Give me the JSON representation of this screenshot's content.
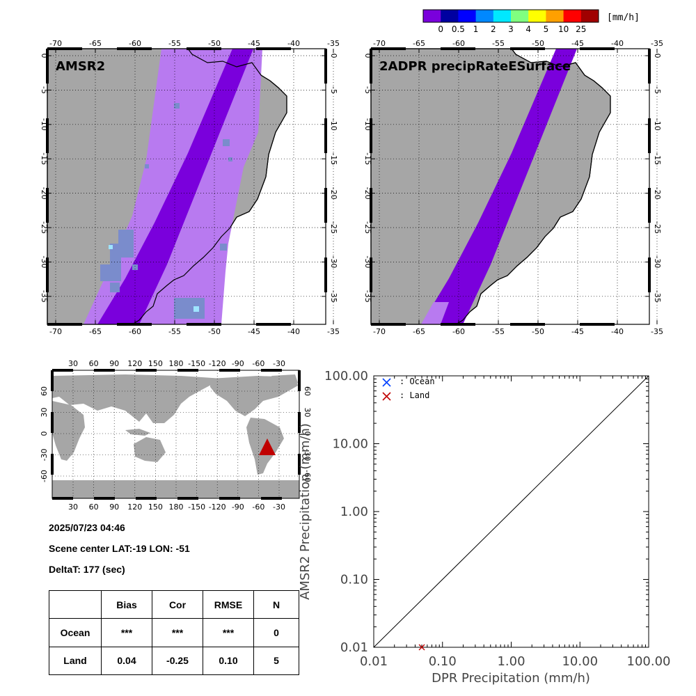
{
  "colorbar": {
    "unit": "[mm/h]",
    "labels": [
      "0",
      "0.5",
      "1",
      "2",
      "3",
      "4",
      "5",
      "10",
      "25"
    ],
    "colors": [
      "#7a00dc",
      "#0000a0",
      "#0000ff",
      "#0088ff",
      "#00e8ff",
      "#80ff80",
      "#ffff00",
      "#ffa000",
      "#ff0000",
      "#a00000"
    ]
  },
  "maps": [
    {
      "title": "AMSR2"
    },
    {
      "title": "2ADPR precipRateESurface"
    }
  ],
  "regional_axes": {
    "lon_ticks": [
      "-70",
      "-65",
      "-60",
      "-55",
      "-50",
      "-45",
      "-40",
      "-35"
    ],
    "lat_ticks": [
      "0",
      "-5",
      "-10",
      "-15",
      "-20",
      "-25",
      "-30",
      "-35"
    ]
  },
  "world_axes": {
    "lon_ticks": [
      "30",
      "60",
      "90",
      "120",
      "150",
      "180",
      "-150",
      "-120",
      "-90",
      "-60",
      "-30"
    ],
    "lat_ticks": [
      "60",
      "30",
      "0",
      "-30",
      "-60"
    ]
  },
  "info": {
    "datetime": "2025/07/23 04:46",
    "scene_center": "Scene center LAT:-19   LON: -51",
    "deltat": "DeltaT:  177 (sec)"
  },
  "stats": {
    "headers": [
      "",
      "Bias",
      "Cor",
      "RMSE",
      "N"
    ],
    "rows": [
      [
        "Ocean",
        "***",
        "***",
        "***",
        "0"
      ],
      [
        "Land",
        "0.04",
        "-0.25",
        "0.10",
        "5"
      ]
    ]
  },
  "colors": {
    "land": "#a6a6a6",
    "light_rain": "#b87af0",
    "rain": "#7a00dc",
    "ocean_marker": "#0040ff",
    "land_marker": "#c00000"
  },
  "chart_data": {
    "type": "scatter",
    "xlabel": "DPR Precipitation (mm/h)",
    "ylabel": "AMSR2 Precipitation (mm/h)",
    "xscale": "log",
    "yscale": "log",
    "xlim": [
      0.01,
      100
    ],
    "ylim": [
      0.01,
      100
    ],
    "x_tick_labels": [
      "0.01",
      "0.10",
      "1.00",
      "10.00",
      "100.00"
    ],
    "y_tick_labels": [
      "0.01",
      "0.10",
      "1.00",
      "10.00",
      "100.00"
    ],
    "legend": [
      {
        "name": ": Ocean",
        "color": "#0040ff"
      },
      {
        "name": ": Land",
        "color": "#c00000"
      }
    ],
    "legend_position": "top-left",
    "series": [
      {
        "name": ": Ocean",
        "x": [],
        "y": []
      },
      {
        "name": ": Land",
        "x": [
          0.05
        ],
        "y": [
          0.01
        ]
      }
    ],
    "reference_line": "1:1"
  }
}
